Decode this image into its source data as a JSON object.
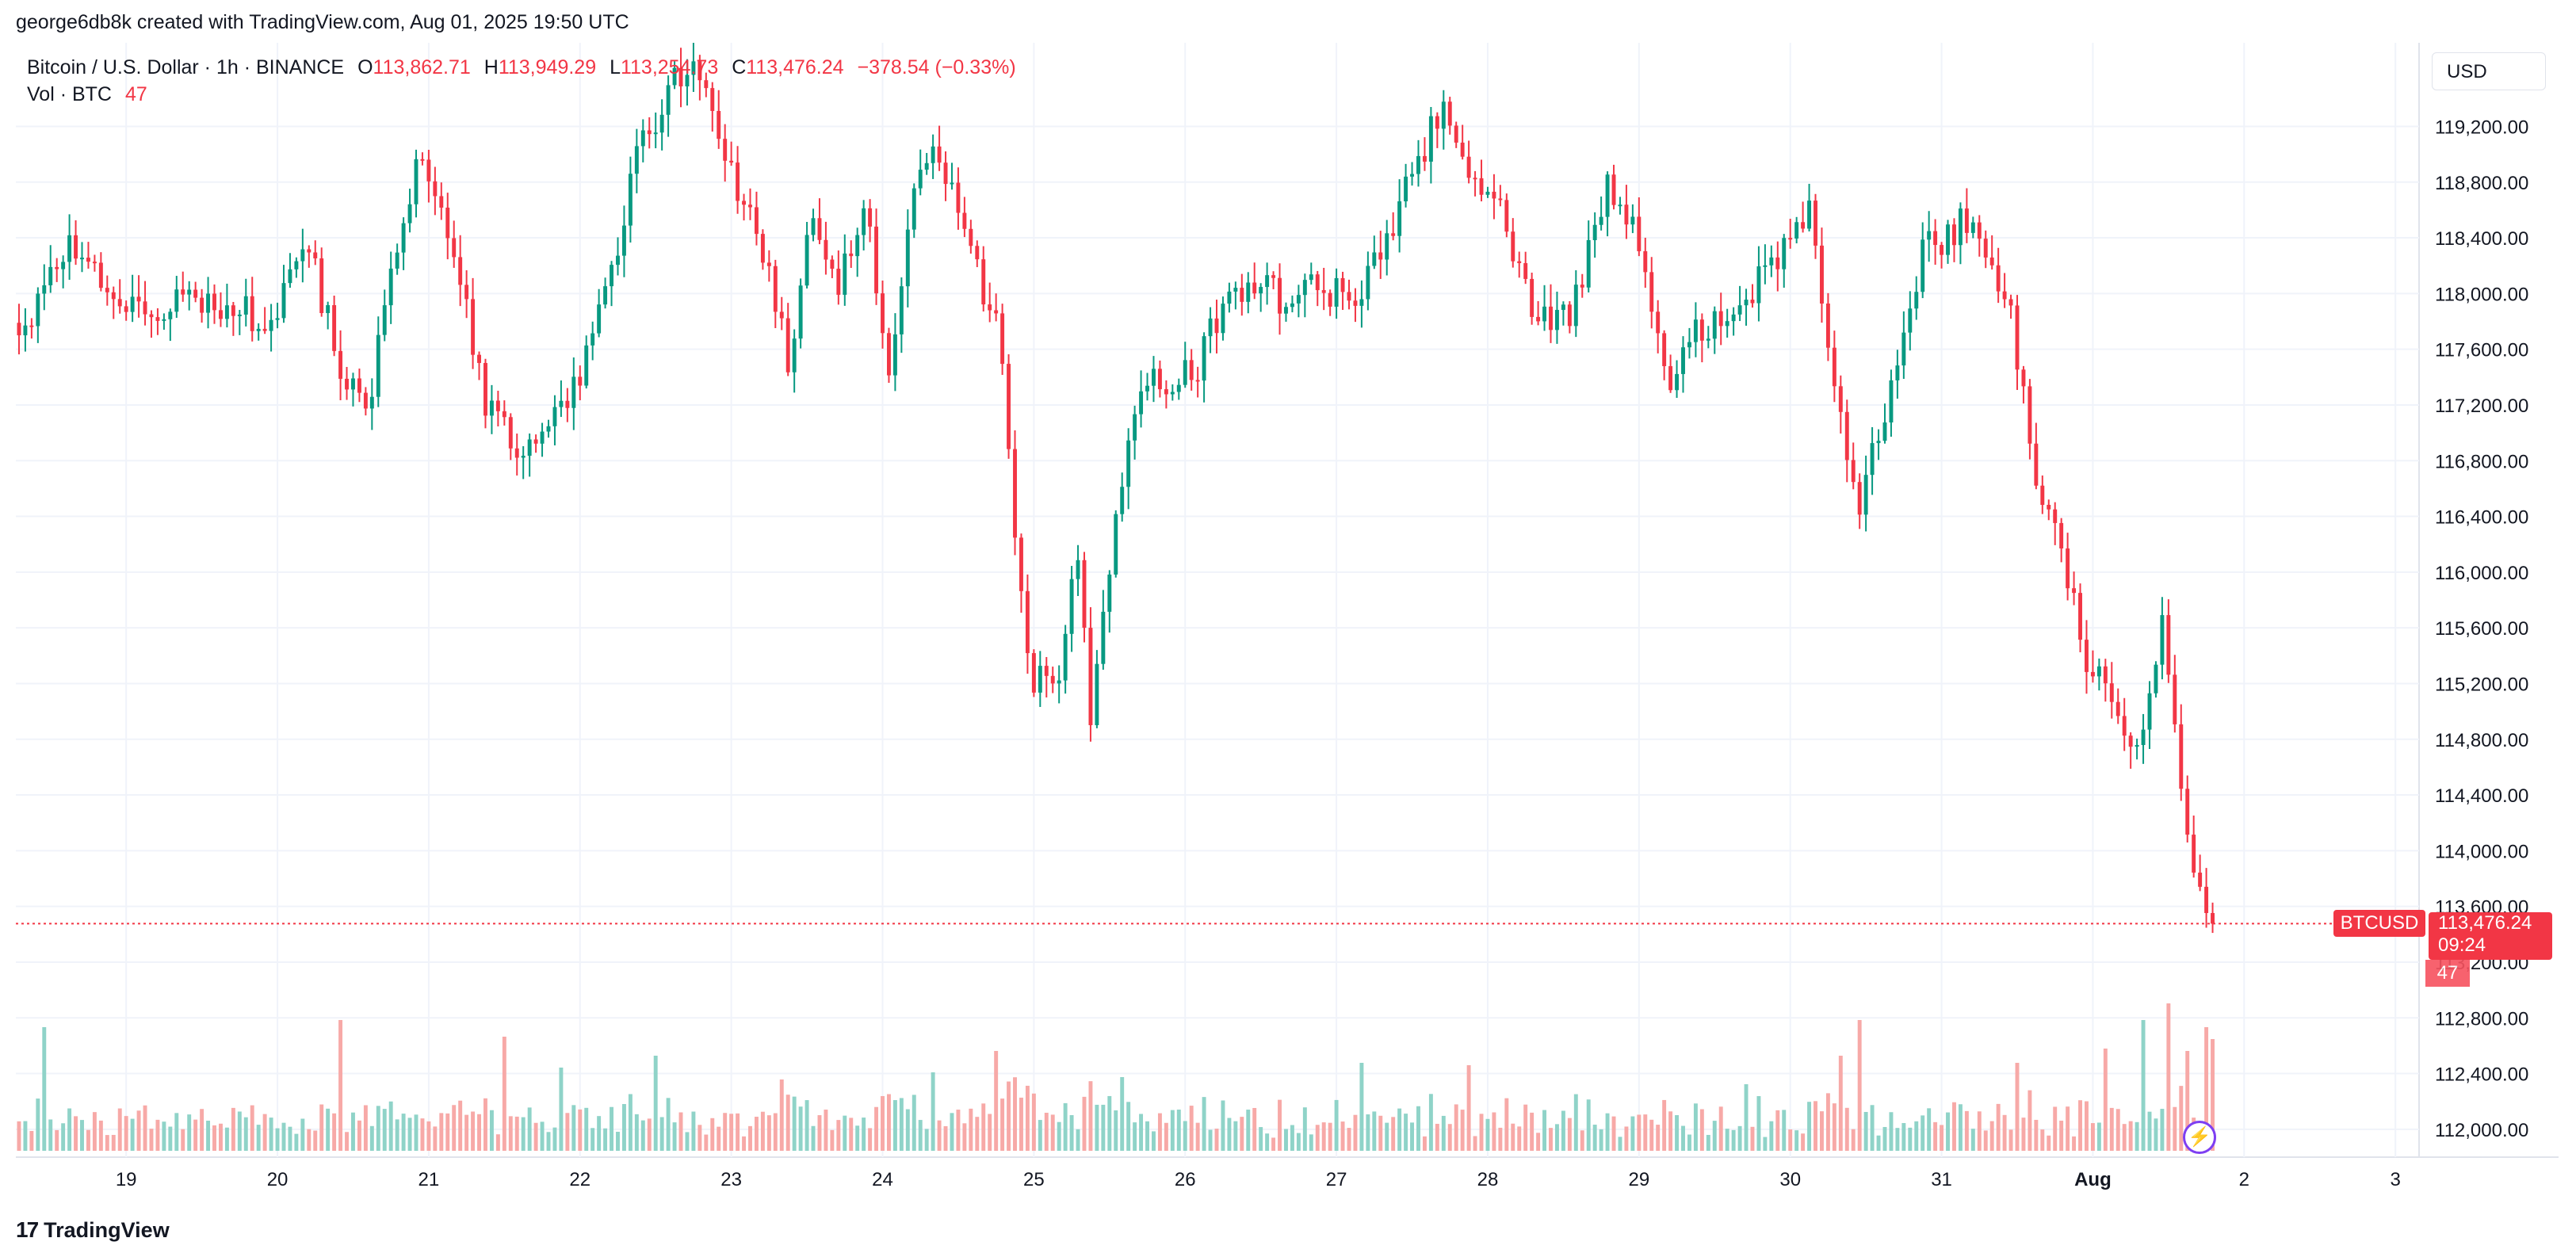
{
  "attribution": "george6db8k created with TradingView.com, Aug 01, 2025 19:50 UTC",
  "legend": {
    "symbol": "Bitcoin / U.S. Dollar · 1h · BINANCE",
    "open_label": "O",
    "open": "113,862.71",
    "high_label": "H",
    "high": "113,949.29",
    "low_label": "L",
    "low": "113,254.73",
    "close_label": "C",
    "close": "113,476.24",
    "change": "−378.54 (−0.33%)",
    "volume_label": "Vol · BTC",
    "volume": "47"
  },
  "currency": "USD",
  "footer": {
    "logo_mark": "17",
    "brand": "TradingView"
  },
  "tags": {
    "symbol": "BTCUSD",
    "price": "113,476.24",
    "countdown": "09:24",
    "volume": "47"
  },
  "colors": {
    "up": "#089981",
    "down": "#f23645",
    "up_volume": "#8fd3c8",
    "down_volume": "#f7a9a7",
    "grid": "#f0f3fa"
  },
  "chart_data": {
    "type": "candlestick",
    "interval": "1h",
    "ylim": [
      111800,
      119800
    ],
    "y_ticks": [
      "112,000.00",
      "112,400.00",
      "112,800.00",
      "113,200.00",
      "113,600.00",
      "114,000.00",
      "114,400.00",
      "114,800.00",
      "115,200.00",
      "115,600.00",
      "116,000.00",
      "116,400.00",
      "116,800.00",
      "117,200.00",
      "117,600.00",
      "118,000.00",
      "118,400.00",
      "118,800.00",
      "119,200.00"
    ],
    "y_tick_values": [
      112000,
      112400,
      112800,
      113200,
      113600,
      114000,
      114400,
      114800,
      115200,
      115600,
      116000,
      116400,
      116800,
      117200,
      117600,
      118000,
      118400,
      118800,
      119200
    ],
    "x_ticks": [
      {
        "label": "19",
        "hour": 17
      },
      {
        "label": "20",
        "hour": 41
      },
      {
        "label": "21",
        "hour": 65
      },
      {
        "label": "22",
        "hour": 89
      },
      {
        "label": "23",
        "hour": 113
      },
      {
        "label": "24",
        "hour": 137
      },
      {
        "label": "25",
        "hour": 161
      },
      {
        "label": "26",
        "hour": 185
      },
      {
        "label": "27",
        "hour": 209
      },
      {
        "label": "28",
        "hour": 233
      },
      {
        "label": "29",
        "hour": 257
      },
      {
        "label": "30",
        "hour": 281
      },
      {
        "label": "31",
        "hour": 305
      },
      {
        "label": "Aug",
        "hour": 329
      },
      {
        "label": "2",
        "hour": 353
      },
      {
        "label": "3",
        "hour": 377
      }
    ],
    "hours_visible": 381,
    "last_price": 113476.24,
    "price_path": [
      [
        0,
        117700
      ],
      [
        8,
        118300
      ],
      [
        14,
        118100
      ],
      [
        20,
        117800
      ],
      [
        28,
        118000
      ],
      [
        34,
        117900
      ],
      [
        40,
        117800
      ],
      [
        46,
        118300
      ],
      [
        52,
        117300
      ],
      [
        56,
        117300
      ],
      [
        60,
        118400
      ],
      [
        64,
        119000
      ],
      [
        68,
        118500
      ],
      [
        74,
        117200
      ],
      [
        80,
        116900
      ],
      [
        86,
        117200
      ],
      [
        90,
        117500
      ],
      [
        94,
        118200
      ],
      [
        98,
        119000
      ],
      [
        104,
        119500
      ],
      [
        108,
        119600
      ],
      [
        110,
        119200
      ],
      [
        114,
        118700
      ],
      [
        118,
        118300
      ],
      [
        122,
        117500
      ],
      [
        126,
        118600
      ],
      [
        130,
        118000
      ],
      [
        134,
        118700
      ],
      [
        138,
        117500
      ],
      [
        142,
        118800
      ],
      [
        146,
        119000
      ],
      [
        150,
        118500
      ],
      [
        156,
        117600
      ],
      [
        158,
        116200
      ],
      [
        160,
        115300
      ],
      [
        164,
        115100
      ],
      [
        168,
        116100
      ],
      [
        170,
        115000
      ],
      [
        176,
        117000
      ],
      [
        180,
        117400
      ],
      [
        186,
        117400
      ],
      [
        190,
        117800
      ],
      [
        196,
        118100
      ],
      [
        202,
        117900
      ],
      [
        206,
        118100
      ],
      [
        212,
        117900
      ],
      [
        218,
        118500
      ],
      [
        222,
        119000
      ],
      [
        226,
        119300
      ],
      [
        230,
        118800
      ],
      [
        236,
        118500
      ],
      [
        240,
        117900
      ],
      [
        246,
        117800
      ],
      [
        252,
        118800
      ],
      [
        256,
        118500
      ],
      [
        262,
        117400
      ],
      [
        266,
        117700
      ],
      [
        272,
        117900
      ],
      [
        278,
        118200
      ],
      [
        284,
        118600
      ],
      [
        288,
        117300
      ],
      [
        292,
        116500
      ],
      [
        296,
        117200
      ],
      [
        302,
        118300
      ],
      [
        308,
        118500
      ],
      [
        312,
        118300
      ],
      [
        316,
        117800
      ],
      [
        320,
        116700
      ],
      [
        324,
        116200
      ],
      [
        328,
        115400
      ],
      [
        332,
        115100
      ],
      [
        336,
        114700
      ],
      [
        340,
        115600
      ],
      [
        344,
        114100
      ],
      [
        346,
        113700
      ],
      [
        348,
        113476
      ]
    ],
    "volume_scale_max": 100,
    "volume_spikes": [
      {
        "hour": 4,
        "value": 52
      },
      {
        "hour": 51,
        "value": 55
      },
      {
        "hour": 77,
        "value": 48
      },
      {
        "hour": 86,
        "value": 35
      },
      {
        "hour": 101,
        "value": 40
      },
      {
        "hour": 121,
        "value": 30
      },
      {
        "hour": 145,
        "value": 33
      },
      {
        "hour": 155,
        "value": 42
      },
      {
        "hour": 175,
        "value": 31
      },
      {
        "hour": 213,
        "value": 37
      },
      {
        "hour": 230,
        "value": 36
      },
      {
        "hour": 274,
        "value": 28
      },
      {
        "hour": 289,
        "value": 40
      },
      {
        "hour": 292,
        "value": 55
      },
      {
        "hour": 317,
        "value": 37
      },
      {
        "hour": 331,
        "value": 43
      },
      {
        "hour": 337,
        "value": 55
      },
      {
        "hour": 341,
        "value": 62
      },
      {
        "hour": 344,
        "value": 42
      },
      {
        "hour": 347,
        "value": 52
      }
    ],
    "current_volume": 47
  }
}
